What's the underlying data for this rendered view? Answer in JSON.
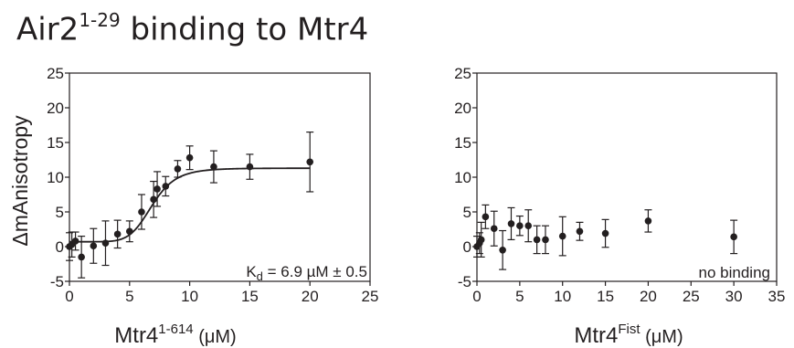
{
  "title": {
    "main": "Air2",
    "sup": "1-29",
    "rest": " binding to Mtr4"
  },
  "chart_data": [
    {
      "type": "scatter",
      "ylabel": "ΔmAnisotropy",
      "xlabel_main": "Mtr4",
      "xlabel_sup": "1-614",
      "xlabel_rest": " (μM)",
      "xlim": [
        0,
        25
      ],
      "ylim": [
        -5,
        25
      ],
      "xticks": [
        0,
        5,
        10,
        15,
        20,
        25
      ],
      "yticks": [
        -5,
        0,
        5,
        10,
        15,
        20,
        25
      ],
      "annotation_main": "K",
      "annotation_sub": "d",
      "annotation_rest": " = 6.9 µM ± 0.5",
      "points": [
        {
          "x": 0,
          "y": 0,
          "err": 2
        },
        {
          "x": 0.2,
          "y": 0.3,
          "err": 1.8
        },
        {
          "x": 0.5,
          "y": 0.8,
          "err": 1.3
        },
        {
          "x": 1,
          "y": -1.5,
          "err": 3
        },
        {
          "x": 2,
          "y": 0.1,
          "err": 2.5
        },
        {
          "x": 3,
          "y": 0.5,
          "err": 3.2
        },
        {
          "x": 4,
          "y": 1.8,
          "err": 2
        },
        {
          "x": 5,
          "y": 2.2,
          "err": 1.5
        },
        {
          "x": 6,
          "y": 5,
          "err": 2.5
        },
        {
          "x": 7,
          "y": 6.8,
          "err": 2.6
        },
        {
          "x": 7.3,
          "y": 8.3,
          "err": 2.5
        },
        {
          "x": 8,
          "y": 8.7,
          "err": 1.4
        },
        {
          "x": 9,
          "y": 11.2,
          "err": 1.2
        },
        {
          "x": 10,
          "y": 12.8,
          "err": 1.7
        },
        {
          "x": 12,
          "y": 11.5,
          "err": 2.3
        },
        {
          "x": 15,
          "y": 11.5,
          "err": 1.8
        },
        {
          "x": 20,
          "y": 12.2,
          "err": 4.3
        }
      ],
      "fit": {
        "bottom": 0.7,
        "top": 11.3,
        "kd": 6.9,
        "hill": 7
      }
    },
    {
      "type": "scatter",
      "xlabel_main": "Mtr4",
      "xlabel_sup": "Fist",
      "xlabel_rest": " (μM)",
      "xlim": [
        0,
        35
      ],
      "ylim": [
        -5,
        25
      ],
      "xticks": [
        0,
        5,
        10,
        15,
        20,
        25,
        30,
        35
      ],
      "yticks": [
        -5,
        0,
        5,
        10,
        15,
        20,
        25
      ],
      "annotation": "no binding",
      "points": [
        {
          "x": 0,
          "y": 0,
          "err": 1.5
        },
        {
          "x": 0.3,
          "y": 0.5,
          "err": 1.5
        },
        {
          "x": 0.5,
          "y": 1,
          "err": 2.5
        },
        {
          "x": 1,
          "y": 4.3,
          "err": 1.7
        },
        {
          "x": 2,
          "y": 2.6,
          "err": 2.5
        },
        {
          "x": 3,
          "y": -0.5,
          "err": 2.8
        },
        {
          "x": 4,
          "y": 3.3,
          "err": 2.3
        },
        {
          "x": 5,
          "y": 3,
          "err": 1.4
        },
        {
          "x": 6,
          "y": 3,
          "err": 2.3
        },
        {
          "x": 7,
          "y": 1,
          "err": 2
        },
        {
          "x": 8,
          "y": 1,
          "err": 2
        },
        {
          "x": 10,
          "y": 1.5,
          "err": 2.8
        },
        {
          "x": 12,
          "y": 2.2,
          "err": 1.3
        },
        {
          "x": 15,
          "y": 1.9,
          "err": 2
        },
        {
          "x": 20,
          "y": 3.7,
          "err": 1.6
        },
        {
          "x": 30,
          "y": 1.4,
          "err": 2.4
        }
      ]
    }
  ]
}
